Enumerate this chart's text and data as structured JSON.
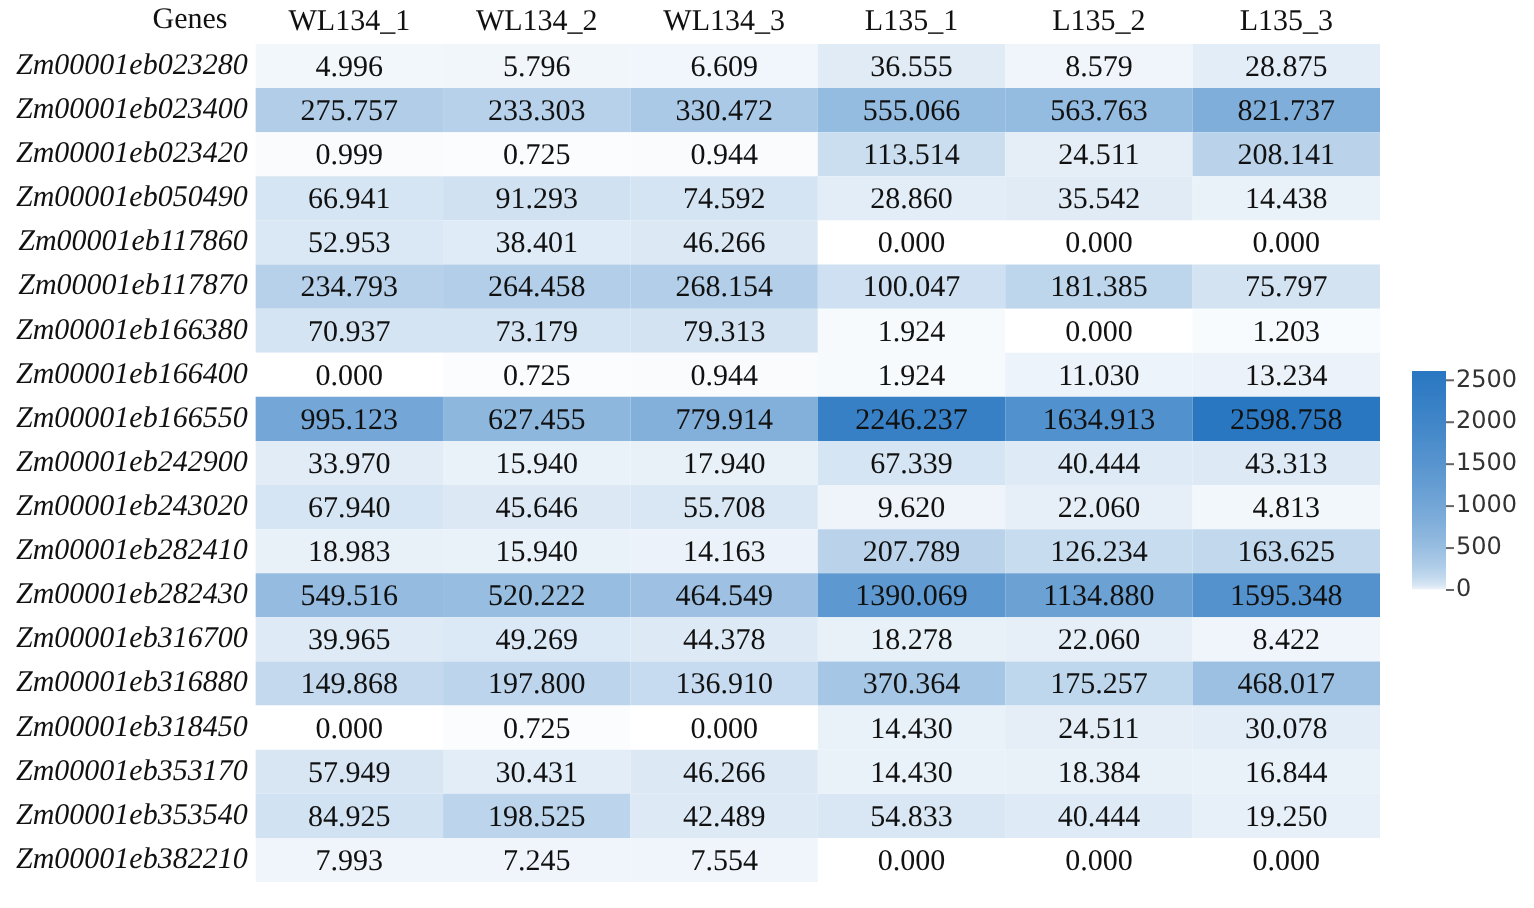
{
  "chart_data": {
    "type": "heatmap",
    "xlabel": "Genes",
    "categories": [
      "WL134_1",
      "WL134_2",
      "WL134_3",
      "L135_1",
      "L135_2",
      "L135_3"
    ],
    "y_categories": [
      "Zm00001eb023280",
      "Zm00001eb023400",
      "Zm00001eb023420",
      "Zm00001eb050490",
      "Zm00001eb117860",
      "Zm00001eb117870",
      "Zm00001eb166380",
      "Zm00001eb166400",
      "Zm00001eb166550",
      "Zm00001eb242900",
      "Zm00001eb243020",
      "Zm00001eb282410",
      "Zm00001eb282430",
      "Zm00001eb316700",
      "Zm00001eb316880",
      "Zm00001eb318450",
      "Zm00001eb353170",
      "Zm00001eb353540",
      "Zm00001eb382210"
    ],
    "cells": [
      [
        4.996,
        5.796,
        6.609,
        36.555,
        8.579,
        28.875
      ],
      [
        275.757,
        233.303,
        330.472,
        555.066,
        563.763,
        821.737
      ],
      [
        0.999,
        0.725,
        0.944,
        113.514,
        24.511,
        208.141
      ],
      [
        66.941,
        91.293,
        74.592,
        28.86,
        35.542,
        14.438
      ],
      [
        52.953,
        38.401,
        46.266,
        0.0,
        0.0,
        0.0
      ],
      [
        234.793,
        264.458,
        268.154,
        100.047,
        181.385,
        75.797
      ],
      [
        70.937,
        73.179,
        79.313,
        1.924,
        0.0,
        1.203
      ],
      [
        0.0,
        0.725,
        0.944,
        1.924,
        11.03,
        13.234
      ],
      [
        995.123,
        627.455,
        779.914,
        2246.237,
        1634.913,
        2598.758
      ],
      [
        33.97,
        15.94,
        17.94,
        67.339,
        40.444,
        43.313
      ],
      [
        67.94,
        45.646,
        55.708,
        9.62,
        22.06,
        4.813
      ],
      [
        18.983,
        15.94,
        14.163,
        207.789,
        126.234,
        163.625
      ],
      [
        549.516,
        520.222,
        464.549,
        1390.069,
        1134.88,
        1595.348
      ],
      [
        39.965,
        49.269,
        44.378,
        18.278,
        22.06,
        8.422
      ],
      [
        149.868,
        197.8,
        136.91,
        370.364,
        175.257,
        468.017
      ],
      [
        0.0,
        0.725,
        0.0,
        14.43,
        24.511,
        30.078
      ],
      [
        57.949,
        30.431,
        46.266,
        14.43,
        18.384,
        16.844
      ],
      [
        84.925,
        198.525,
        42.489,
        54.833,
        40.444,
        19.25
      ],
      [
        7.993,
        7.245,
        7.554,
        0.0,
        0.0,
        0.0
      ]
    ],
    "cell_labels": [
      [
        "4.996",
        "5.796",
        "6.609",
        "36.555",
        "8.579",
        "28.875"
      ],
      [
        "275.757",
        "233.303",
        "330.472",
        "555.066",
        "563.763",
        "821.737"
      ],
      [
        "0.999",
        "0.725",
        "0.944",
        "113.514",
        "24.511",
        "208.141"
      ],
      [
        "66.941",
        "91.293",
        "74.592",
        "28.860",
        "35.542",
        "14.438"
      ],
      [
        "52.953",
        "38.401",
        "46.266",
        "0.000",
        "0.000",
        "0.000"
      ],
      [
        "234.793",
        "264.458",
        "268.154",
        "100.047",
        "181.385",
        "75.797"
      ],
      [
        "70.937",
        "73.179",
        "79.313",
        "1.924",
        "0.000",
        "1.203"
      ],
      [
        "0.000",
        "0.725",
        "0.944",
        "1.924",
        "11.030",
        "13.234"
      ],
      [
        "995.123",
        "627.455",
        "779.914",
        "2246.237",
        "1634.913",
        "2598.758"
      ],
      [
        "33.970",
        "15.940",
        "17.940",
        "67.339",
        "40.444",
        "43.313"
      ],
      [
        "67.940",
        "45.646",
        "55.708",
        "9.620",
        "22.060",
        "4.813"
      ],
      [
        "18.983",
        "15.940",
        "14.163",
        "207.789",
        "126.234",
        "163.625"
      ],
      [
        "549.516",
        "520.222",
        "464.549",
        "1390.069",
        "1134.880",
        "1595.348"
      ],
      [
        "39.965",
        "49.269",
        "44.378",
        "18.278",
        "22.060",
        "8.422"
      ],
      [
        "149.868",
        "197.800",
        "136.910",
        "370.364",
        "175.257",
        "468.017"
      ],
      [
        "0.000",
        "0.725",
        "0.000",
        "14.430",
        "24.511",
        "30.078"
      ],
      [
        "57.949",
        "30.431",
        "46.266",
        "14.430",
        "18.384",
        "16.844"
      ],
      [
        "84.925",
        "198.525",
        "42.489",
        "54.833",
        "40.444",
        "19.250"
      ],
      [
        "7.993",
        "7.245",
        "7.554",
        "0.000",
        "0.000",
        "0.000"
      ]
    ],
    "clim": [
      0,
      2598.758
    ],
    "cticks": [
      0,
      500,
      1000,
      1500,
      2000,
      2500
    ]
  }
}
